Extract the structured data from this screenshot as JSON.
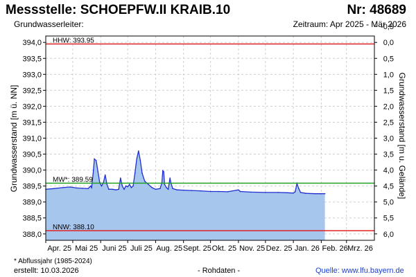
{
  "header": {
    "title": "Messstelle: SCHOEPFW.II KRAIB.10",
    "number": "Nr: 48689",
    "aquifer_label": "Grundwasserleiter:",
    "period": "Zeitraum: Apr 2025 - Mär 2026"
  },
  "footer": {
    "footnote": "* Abflussjahr (1985-2024)",
    "created": "erstellt:  10.03.2026",
    "raw": "- Rohdaten -",
    "source": "Quelle:  www.lfu.bayern.de"
  },
  "colors": {
    "area_fill": "#a7c6ee",
    "line": "#1f2fd0",
    "hhw": "#e02020",
    "nnw": "#e02020",
    "mw": "#20a020",
    "grid": "#cfcfcf"
  },
  "chart_data": {
    "type": "area",
    "ylabel": "Grundwasserstand [m ü. NN]",
    "ylabel_right": "Grundwasserstand [m u. Gelände]",
    "ylim": [
      387.8,
      394.2
    ],
    "yticks": [
      "388,0",
      "388,5",
      "389,0",
      "389,5",
      "390,0",
      "390,5",
      "391,0",
      "391,5",
      "392,0",
      "392,5",
      "393,0",
      "393,5",
      "394,0"
    ],
    "yticks_right": [
      "-0,5",
      "0,0",
      "0,5",
      "1,0",
      "1,5",
      "2,0",
      "2,5",
      "3,0",
      "3,5",
      "4,0",
      "4,5",
      "5,0",
      "5,5",
      "6,0"
    ],
    "x_start": "2025-04-01",
    "x_end": "2026-03-31",
    "xticks": [
      {
        "date": "2025-04-01",
        "label": "Apr. 25"
      },
      {
        "date": "2025-05-01",
        "label": "Mai 25"
      },
      {
        "date": "2025-06-01",
        "label": "Juni 25"
      },
      {
        "date": "2025-07-01",
        "label": "Juli 25"
      },
      {
        "date": "2025-08-01",
        "label": "Aug. 25"
      },
      {
        "date": "2025-09-01",
        "label": "Sept. 25"
      },
      {
        "date": "2025-10-01",
        "label": "Okt. 25"
      },
      {
        "date": "2025-11-01",
        "label": "Nov. 25"
      },
      {
        "date": "2025-12-01",
        "label": "Dez. 25"
      },
      {
        "date": "2026-01-01",
        "label": "Jan. 26"
      },
      {
        "date": "2026-02-01",
        "label": "Feb. 26"
      },
      {
        "date": "2026-03-01",
        "label": "Mrz. 26"
      }
    ],
    "reference_lines": [
      {
        "name": "HHW",
        "label": "HHW: 393.95",
        "value": 393.95
      },
      {
        "name": "MW",
        "label": "MW*: 389.59",
        "value": 389.59
      },
      {
        "name": "NNW",
        "label": "NNW: 388.10",
        "value": 388.1
      }
    ],
    "series": [
      {
        "points": [
          [
            "2025-04-01",
            389.4
          ],
          [
            "2025-04-10",
            389.42
          ],
          [
            "2025-04-20",
            389.45
          ],
          [
            "2025-04-28",
            389.47
          ],
          [
            "2025-05-05",
            389.44
          ],
          [
            "2025-05-12",
            389.43
          ],
          [
            "2025-05-18",
            389.42
          ],
          [
            "2025-05-21",
            389.5
          ],
          [
            "2025-05-22",
            389.45
          ],
          [
            "2025-05-24",
            390.0
          ],
          [
            "2025-05-25",
            390.35
          ],
          [
            "2025-05-27",
            390.3
          ],
          [
            "2025-05-29",
            389.95
          ],
          [
            "2025-05-31",
            389.6
          ],
          [
            "2025-06-02",
            389.5
          ],
          [
            "2025-06-04",
            389.6
          ],
          [
            "2025-06-06",
            389.85
          ],
          [
            "2025-06-08",
            389.55
          ],
          [
            "2025-06-10",
            389.4
          ],
          [
            "2025-06-14",
            389.4
          ],
          [
            "2025-06-18",
            389.38
          ],
          [
            "2025-06-21",
            389.4
          ],
          [
            "2025-06-23",
            389.75
          ],
          [
            "2025-06-25",
            389.5
          ],
          [
            "2025-06-27",
            389.4
          ],
          [
            "2025-06-29",
            389.5
          ],
          [
            "2025-07-01",
            389.48
          ],
          [
            "2025-07-03",
            389.55
          ],
          [
            "2025-07-05",
            389.45
          ],
          [
            "2025-07-07",
            389.5
          ],
          [
            "2025-07-09",
            389.9
          ],
          [
            "2025-07-11",
            390.35
          ],
          [
            "2025-07-13",
            390.6
          ],
          [
            "2025-07-15",
            390.3
          ],
          [
            "2025-07-17",
            389.9
          ],
          [
            "2025-07-20",
            389.65
          ],
          [
            "2025-07-24",
            389.55
          ],
          [
            "2025-07-28",
            389.45
          ],
          [
            "2025-08-01",
            389.4
          ],
          [
            "2025-08-06",
            389.42
          ],
          [
            "2025-08-08",
            389.6
          ],
          [
            "2025-08-09",
            389.98
          ],
          [
            "2025-08-10",
            389.95
          ],
          [
            "2025-08-11",
            389.55
          ],
          [
            "2025-08-13",
            389.45
          ],
          [
            "2025-08-15",
            389.4
          ],
          [
            "2025-08-17",
            389.75
          ],
          [
            "2025-08-18",
            389.6
          ],
          [
            "2025-08-20",
            389.42
          ],
          [
            "2025-08-25",
            389.38
          ],
          [
            "2025-09-01",
            389.37
          ],
          [
            "2025-09-10",
            389.36
          ],
          [
            "2025-09-20",
            389.35
          ],
          [
            "2025-10-01",
            389.33
          ],
          [
            "2025-10-10",
            389.33
          ],
          [
            "2025-10-20",
            389.32
          ],
          [
            "2025-11-01",
            389.38
          ],
          [
            "2025-11-03",
            389.33
          ],
          [
            "2025-11-15",
            389.31
          ],
          [
            "2025-12-01",
            389.3
          ],
          [
            "2025-12-15",
            389.3
          ],
          [
            "2025-12-25",
            389.29
          ],
          [
            "2026-01-01",
            389.28
          ],
          [
            "2026-01-03",
            389.32
          ],
          [
            "2026-01-05",
            389.58
          ],
          [
            "2026-01-07",
            389.42
          ],
          [
            "2026-01-09",
            389.3
          ],
          [
            "2026-01-15",
            389.27
          ],
          [
            "2026-01-25",
            389.26
          ],
          [
            "2026-02-01",
            389.26
          ],
          [
            "2026-02-05",
            389.26
          ]
        ]
      }
    ]
  }
}
